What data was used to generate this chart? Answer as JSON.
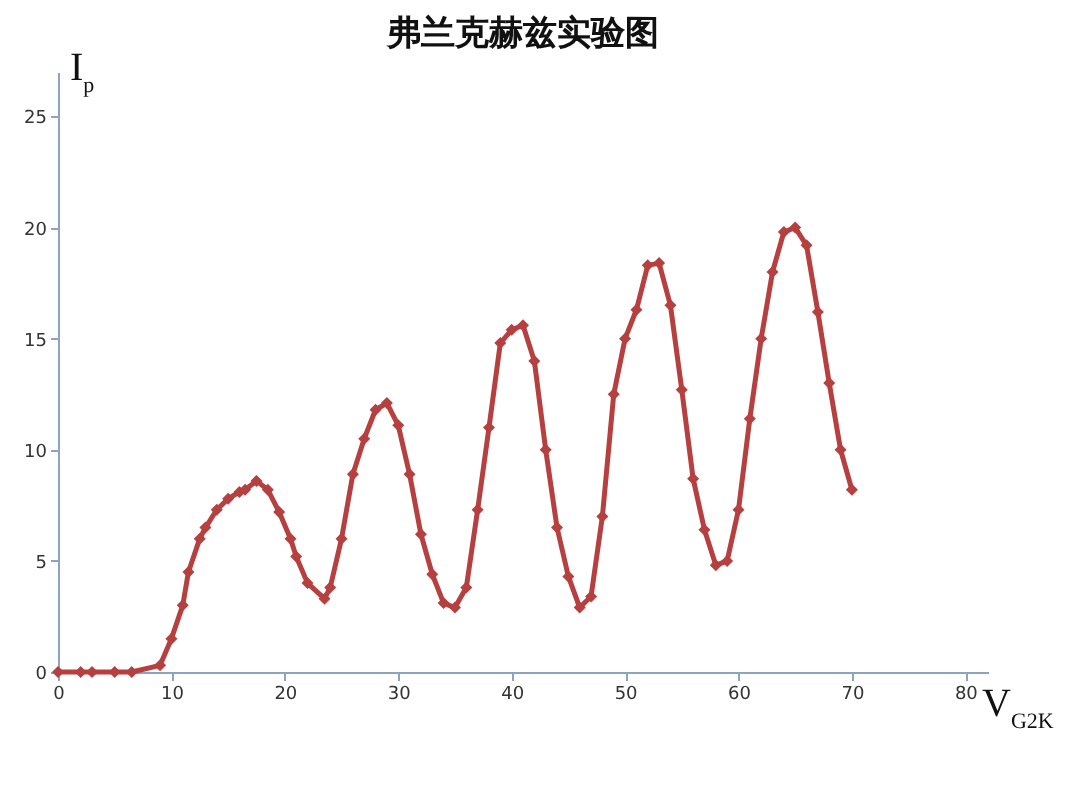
{
  "chart_data": {
    "type": "line",
    "title": "弗兰克赫兹实验图",
    "xlabel": "V$_{G2K}$",
    "ylabel": "I$_{p}$",
    "x": [
      0,
      2,
      3,
      5,
      6.5,
      9,
      10,
      11,
      11.5,
      12.5,
      13,
      14,
      15,
      16,
      16.5,
      17.5,
      18.5,
      19.5,
      20.5,
      21,
      22,
      23.5,
      24,
      25,
      26,
      27,
      28,
      29,
      30,
      31,
      32,
      33,
      34,
      35,
      36,
      37,
      38,
      39,
      40,
      41,
      42,
      43,
      44,
      45,
      46,
      47,
      48,
      49,
      50,
      51,
      52,
      53,
      54,
      55,
      56,
      57,
      58,
      59,
      60,
      61,
      62,
      63,
      64,
      65,
      66,
      67,
      68,
      69,
      70
    ],
    "series": [
      {
        "color": "#b5403f",
        "values": [
          0,
          0,
          0,
          0,
          0,
          0.3,
          1.5,
          3,
          4.5,
          6,
          6.5,
          7.3,
          7.8,
          8.1,
          8.2,
          8.6,
          8.2,
          7.2,
          6,
          5.2,
          4,
          3.3,
          3.8,
          6,
          8.9,
          10.5,
          11.8,
          12.1,
          11.1,
          8.9,
          6.2,
          4.4,
          3.1,
          2.9,
          3.8,
          7.3,
          11,
          14.8,
          15.4,
          15.6,
          14,
          10,
          6.5,
          4.3,
          2.9,
          3.4,
          7,
          12.5,
          15,
          16.3,
          18.3,
          18.4,
          16.5,
          12.7,
          8.7,
          6.4,
          4.8,
          5,
          7.3,
          11.4,
          15,
          18,
          19.8,
          20,
          19.2,
          16.2,
          13,
          10,
          8.2
        ]
      }
    ],
    "xlim": [
      0,
      82
    ],
    "ylim": [
      0,
      27
    ],
    "xticks": [
      0,
      10,
      20,
      30,
      40,
      50,
      60,
      70,
      80
    ],
    "yticks": [
      0,
      5,
      10,
      15,
      20,
      25
    ],
    "marker": "diamond",
    "line_style": "solid"
  }
}
